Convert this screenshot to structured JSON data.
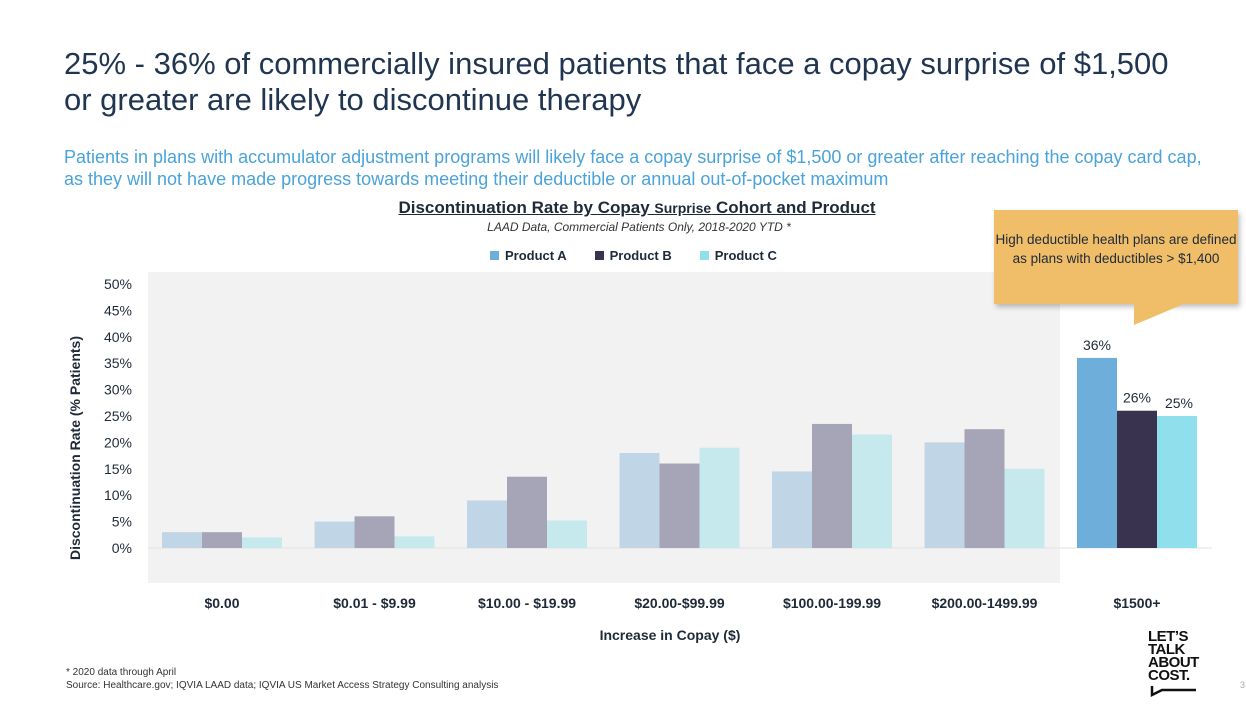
{
  "slide": {
    "title": "25% - 36% of commercially insured patients that face a copay surprise of $1,500 or greater are likely to discontinue therapy",
    "subtitle": "Patients in plans with accumulator adjustment programs will likely face a copay surprise of $1,500 or greater after reaching the copay card cap, as they will not have made progress towards meeting their deductible or annual out-of-pocket maximum",
    "chart_title_part1": "Discontinuation Rate by Copay ",
    "chart_title_part2": "Surprise",
    "chart_title_part3": " Cohort and Product",
    "chart_subtitle": "LAAD Data, Commercial Patients Only, 2018-2020 YTD *",
    "callout": "High deductible health plans are defined as plans with deductibles > $1,400",
    "footnote1": "* 2020 data through April",
    "footnote2": "Source: Healthcare.gov; IQVIA LAAD data; IQVIA US Market Access Strategy Consulting analysis",
    "logo_lines": [
      "LET’S",
      "TALK",
      "ABOUT",
      "COST."
    ],
    "page_number": "3"
  },
  "chart_data": {
    "type": "bar",
    "categories": [
      "$0.00",
      "$0.01 - $9.99",
      "$10.00 - $19.99",
      "$20.00-$99.99",
      "$100.00-199.99",
      "$200.00-1499.99",
      "$1500+"
    ],
    "series": [
      {
        "name": "Product A",
        "values": [
          3,
          5,
          9,
          18,
          14.5,
          20,
          36
        ]
      },
      {
        "name": "Product B",
        "values": [
          3,
          6,
          13.5,
          16,
          23.5,
          22.5,
          26
        ]
      },
      {
        "name": "Product C",
        "values": [
          2,
          2.2,
          5.2,
          19,
          21.5,
          15,
          25
        ]
      }
    ],
    "highlighted_category": "$1500+",
    "data_labels": {
      "$1500+": [
        "36%",
        "26%",
        "25%"
      ]
    },
    "xlabel": "Increase in Copay ($)",
    "ylabel": "Discontinuation Rate (% Patients)",
    "ylim": [
      0,
      50
    ],
    "yticks": [
      "0%",
      "5%",
      "10%",
      "15%",
      "20%",
      "25%",
      "30%",
      "35%",
      "40%",
      "45%",
      "50%"
    ],
    "legend_position": "top",
    "colors_faded": [
      "#c0d6e6",
      "#a6a5b7",
      "#c6e9ee"
    ],
    "colors_highlight": [
      "#6eaedb",
      "#39334f",
      "#8fe0ec"
    ],
    "grid": false
  }
}
